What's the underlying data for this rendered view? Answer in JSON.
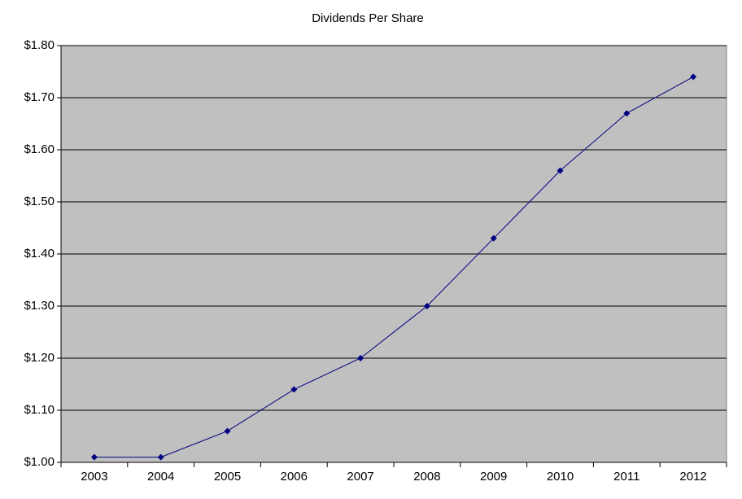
{
  "chart_data": {
    "type": "line",
    "title": "Dividends Per Share",
    "categories": [
      "2003",
      "2004",
      "2005",
      "2006",
      "2007",
      "2008",
      "2009",
      "2010",
      "2011",
      "2012"
    ],
    "values": [
      1.01,
      1.01,
      1.06,
      1.14,
      1.2,
      1.3,
      1.43,
      1.56,
      1.67,
      1.74
    ],
    "color": "#000080",
    "ylim": [
      1.0,
      1.8
    ],
    "yticks": [
      {
        "value": 1.0,
        "label": "$1.00"
      },
      {
        "value": 1.1,
        "label": "$1.10"
      },
      {
        "value": 1.2,
        "label": "$1.20"
      },
      {
        "value": 1.3,
        "label": "$1.30"
      },
      {
        "value": 1.4,
        "label": "$1.40"
      },
      {
        "value": 1.5,
        "label": "$1.50"
      },
      {
        "value": 1.6,
        "label": "$1.60"
      },
      {
        "value": 1.7,
        "label": "$1.70"
      },
      {
        "value": 1.8,
        "label": "$1.80"
      }
    ],
    "grid": true
  }
}
